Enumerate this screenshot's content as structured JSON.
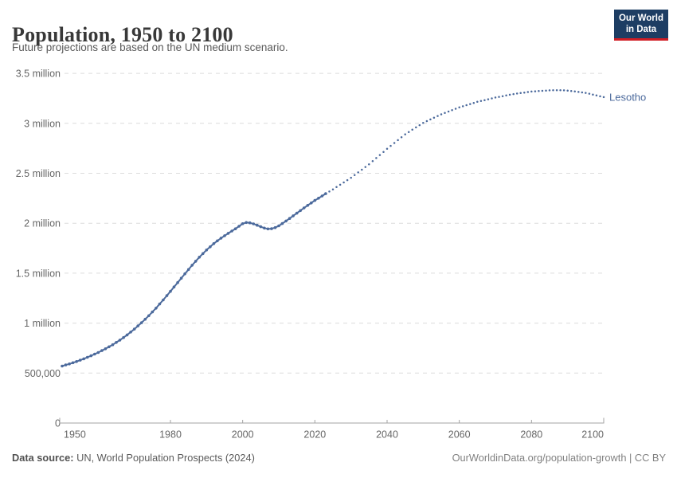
{
  "header": {
    "title": "Population, 1950 to 2100",
    "subtitle": "Future projections are based on the UN medium scenario.",
    "logo": {
      "line1": "Our World",
      "line2": "in Data",
      "bg_color": "#1d3d63",
      "accent_color": "#d01d24"
    }
  },
  "chart_data": {
    "type": "line",
    "title": "Population, 1950 to 2100",
    "entity": "Lesotho",
    "entity_label_color": "#4c6a9c",
    "line_color": "#4c6a9c",
    "grid": "horizontal-dashed",
    "legend_position": "end-of-line-label",
    "xlim": [
      1950,
      2100
    ],
    "ylim": [
      0,
      3500000
    ],
    "projection_start_year": 2023,
    "x_ticks": [
      "1950",
      "1980",
      "2000",
      "2020",
      "2040",
      "2060",
      "2080",
      "2100"
    ],
    "y_ticks": [
      {
        "value": 0,
        "label": "0"
      },
      {
        "value": 500000,
        "label": "500,000"
      },
      {
        "value": 1000000,
        "label": "1 million"
      },
      {
        "value": 1500000,
        "label": "1.5 million"
      },
      {
        "value": 2000000,
        "label": "2 million"
      },
      {
        "value": 2500000,
        "label": "2.5 million"
      },
      {
        "value": 3000000,
        "label": "3 million"
      },
      {
        "value": 3500000,
        "label": "3.5 million"
      }
    ],
    "series": [
      {
        "name": "Lesotho (historical estimates)",
        "style": "solid-with-markers",
        "points": [
          [
            1950,
            570000
          ],
          [
            1952,
            592000
          ],
          [
            1954,
            616000
          ],
          [
            1956,
            643000
          ],
          [
            1958,
            673000
          ],
          [
            1960,
            706000
          ],
          [
            1962,
            743000
          ],
          [
            1964,
            784000
          ],
          [
            1966,
            830000
          ],
          [
            1968,
            882000
          ],
          [
            1970,
            940000
          ],
          [
            1972,
            1004000
          ],
          [
            1974,
            1074000
          ],
          [
            1976,
            1150000
          ],
          [
            1978,
            1232000
          ],
          [
            1980,
            1318000
          ],
          [
            1982,
            1406000
          ],
          [
            1984,
            1494000
          ],
          [
            1986,
            1580000
          ],
          [
            1988,
            1660000
          ],
          [
            1990,
            1732000
          ],
          [
            1992,
            1796000
          ],
          [
            1994,
            1851000
          ],
          [
            1996,
            1899000
          ],
          [
            1998,
            1944000
          ],
          [
            2000,
            1995000
          ],
          [
            2001,
            2007000
          ],
          [
            2002,
            2004000
          ],
          [
            2003,
            1994000
          ],
          [
            2004,
            1980000
          ],
          [
            2005,
            1965000
          ],
          [
            2006,
            1951000
          ],
          [
            2007,
            1943000
          ],
          [
            2008,
            1945000
          ],
          [
            2009,
            1956000
          ],
          [
            2010,
            1974000
          ],
          [
            2011,
            1997000
          ],
          [
            2012,
            2022000
          ],
          [
            2014,
            2074000
          ],
          [
            2016,
            2127000
          ],
          [
            2018,
            2179000
          ],
          [
            2020,
            2228000
          ],
          [
            2022,
            2273000
          ],
          [
            2023,
            2296000
          ]
        ]
      },
      {
        "name": "Lesotho (UN medium projection)",
        "style": "dotted",
        "points": [
          [
            2023,
            2296000
          ],
          [
            2025,
            2339000
          ],
          [
            2030,
            2455000
          ],
          [
            2035,
            2590000
          ],
          [
            2040,
            2745000
          ],
          [
            2045,
            2890000
          ],
          [
            2050,
            3005000
          ],
          [
            2055,
            3090000
          ],
          [
            2060,
            3160000
          ],
          [
            2065,
            3215000
          ],
          [
            2070,
            3258000
          ],
          [
            2075,
            3293000
          ],
          [
            2080,
            3318000
          ],
          [
            2085,
            3330000
          ],
          [
            2088,
            3332000
          ],
          [
            2090,
            3328000
          ],
          [
            2095,
            3305000
          ],
          [
            2100,
            3262000
          ]
        ]
      }
    ]
  },
  "footer": {
    "source_label": "Data source:",
    "source_value": " UN, World Population Prospects (2024)",
    "attribution": "OurWorldinData.org/population-growth | CC BY"
  }
}
